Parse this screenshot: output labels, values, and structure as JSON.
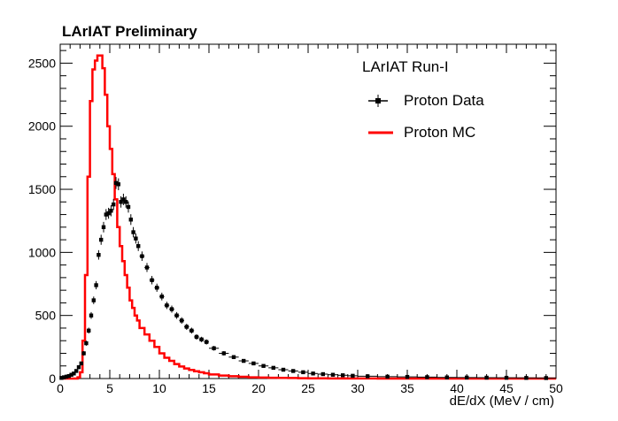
{
  "chart_data": {
    "type": "histogram",
    "title": "LArIAT Preliminary",
    "xlabel": "dE/dX (MeV / cm)",
    "ylabel": "",
    "xlim": [
      0,
      50
    ],
    "ylim": [
      0,
      2650
    ],
    "xticks": [
      "0",
      "5",
      "10",
      "15",
      "20",
      "25",
      "30",
      "35",
      "40",
      "45",
      "50"
    ],
    "yticks": [
      "0",
      "500",
      "1000",
      "1500",
      "2000",
      "2500"
    ],
    "legend": {
      "header": "LArIAT Run-I",
      "placement": "top-right",
      "entries": [
        {
          "label": "Proton Data",
          "style": "markers-with-error-bars",
          "color": "#000000"
        },
        {
          "label": "Proton MC",
          "style": "step-line",
          "color": "#ff0000"
        }
      ]
    },
    "series": [
      {
        "name": "Proton Data",
        "color": "#000000",
        "x": [
          0.25,
          0.5,
          0.75,
          1.0,
          1.25,
          1.5,
          1.75,
          2.0,
          2.25,
          2.5,
          2.75,
          3.0,
          3.25,
          3.5,
          3.75,
          4.0,
          4.25,
          4.5,
          4.75,
          5.0,
          5.25,
          5.5,
          5.75,
          6.0,
          6.25,
          6.5,
          6.75,
          7.0,
          7.25,
          7.5,
          7.75,
          8.0,
          8.5,
          9.0,
          9.5,
          10.0,
          10.5,
          11.0,
          11.5,
          12.0,
          12.5,
          13.0,
          13.5,
          14.0,
          14.5,
          15.0,
          16.0,
          17.0,
          18.0,
          19.0,
          20.0,
          21.0,
          22.0,
          23.0,
          24.0,
          25.0,
          26.0,
          27.0,
          28.0,
          29.0,
          30.0,
          32.0,
          34.0,
          36.0,
          38.0,
          40.0,
          42.0,
          44.0,
          46.0,
          48.0,
          50.0
        ],
        "y": [
          5,
          10,
          15,
          20,
          30,
          40,
          60,
          90,
          120,
          200,
          280,
          380,
          500,
          620,
          740,
          980,
          1100,
          1200,
          1300,
          1310,
          1330,
          1380,
          1550,
          1540,
          1400,
          1420,
          1400,
          1360,
          1260,
          1160,
          1110,
          1050,
          970,
          880,
          780,
          720,
          650,
          580,
          550,
          500,
          460,
          410,
          380,
          330,
          310,
          290,
          240,
          200,
          170,
          140,
          120,
          100,
          85,
          70,
          60,
          50,
          40,
          35,
          30,
          26,
          22,
          18,
          15,
          13,
          11,
          9,
          8,
          7,
          6,
          5,
          4
        ]
      },
      {
        "name": "Proton MC",
        "color": "#ff0000",
        "x": [
          0.25,
          0.5,
          0.75,
          1.0,
          1.25,
          1.5,
          1.75,
          2.0,
          2.25,
          2.5,
          2.75,
          3.0,
          3.25,
          3.5,
          3.75,
          4.0,
          4.25,
          4.5,
          4.75,
          5.0,
          5.25,
          5.5,
          5.75,
          6.0,
          6.25,
          6.5,
          6.75,
          7.0,
          7.25,
          7.5,
          7.75,
          8.0,
          8.5,
          9.0,
          9.5,
          10.0,
          10.5,
          11.0,
          11.5,
          12.0,
          12.5,
          13.0,
          13.5,
          14.0,
          14.5,
          15.0,
          16.0,
          17.0,
          18.0,
          19.0,
          20.0,
          21.0,
          22.0,
          23.0,
          24.0,
          25.0,
          26.0,
          27.0,
          28.0,
          29.0,
          30.0,
          32.0,
          34.0,
          36.0,
          38.0,
          40.0,
          42.0,
          44.0,
          46.0,
          48.0,
          50.0
        ],
        "y": [
          0,
          0,
          0,
          0,
          0,
          0,
          0,
          10,
          50,
          300,
          820,
          1600,
          2200,
          2450,
          2520,
          2560,
          2560,
          2460,
          2250,
          2000,
          1820,
          1620,
          1420,
          1200,
          1050,
          930,
          820,
          720,
          620,
          560,
          500,
          460,
          400,
          350,
          300,
          250,
          200,
          165,
          140,
          115,
          95,
          80,
          68,
          58,
          50,
          42,
          32,
          24,
          18,
          14,
          10,
          8,
          6,
          5,
          4,
          3,
          2,
          2,
          1,
          1,
          1,
          1,
          0,
          0,
          0,
          0,
          0,
          0,
          0,
          0,
          0
        ]
      }
    ]
  }
}
